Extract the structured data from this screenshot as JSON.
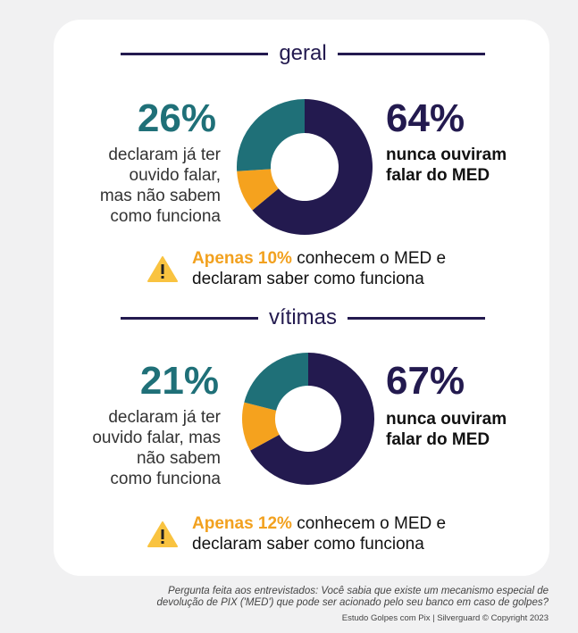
{
  "sections": [
    {
      "title": "geral",
      "left_pct": "26%",
      "left_text": [
        "declaram já ter",
        "ouvido falar,",
        "mas não sabem",
        "como funciona"
      ],
      "right_pct": "64%",
      "right_text": [
        "nunca ouviram",
        "falar do MED"
      ],
      "warn_bold": "Apenas 10%",
      "warn_rest": " conhecem o MED e",
      "warn_line2": "declaram saber como funciona"
    },
    {
      "title": "vítimas",
      "left_pct": "21%",
      "left_text": [
        "declaram já ter",
        "ouvido falar, mas",
        "não sabem",
        "como funciona"
      ],
      "right_pct": "67%",
      "right_text": [
        "nunca ouviram",
        "falar do MED"
      ],
      "warn_bold": "Apenas 12%",
      "warn_rest": " conhecem o MED e",
      "warn_line2": "declaram saber como funciona"
    }
  ],
  "chart_data": [
    {
      "type": "pie",
      "title": "geral",
      "categories": [
        "nunca ouviram falar do MED",
        "conhecem e sabem como funciona",
        "já ouviram falar, mas não sabem como funciona"
      ],
      "values": [
        64,
        10,
        26
      ],
      "colors": [
        "#231a4f",
        "#f5a21e",
        "#1f7078"
      ]
    },
    {
      "type": "pie",
      "title": "vítimas",
      "categories": [
        "nunca ouviram falar do MED",
        "conhecem e sabem como funciona",
        "já ouviram falar, mas não sabem como funciona"
      ],
      "values": [
        67,
        12,
        21
      ],
      "colors": [
        "#231a4f",
        "#f5a21e",
        "#1f7078"
      ]
    }
  ],
  "footer": {
    "question1": "Pergunta feita aos entrevistados: Você sabia que existe um mecanismo especial de",
    "question2": "devolução de PIX ('MED') que pode ser acionado pelo seu banco em caso de golpes?",
    "credit": "Estudo Golpes com Pix | Silverguard © Copyright 2023"
  }
}
